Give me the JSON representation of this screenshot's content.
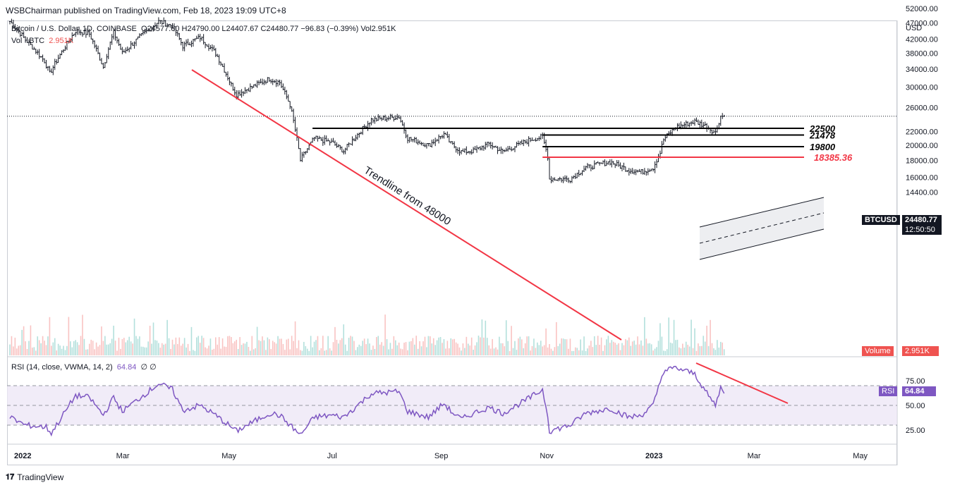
{
  "publisher": "WSBChairman published on TradingView.com, Feb 18, 2023 19:09 UTC+8",
  "legend": {
    "symbol": "Bitcoin / U.S. Dollar, 1D, COINBASE",
    "ohlc": "O24577.60  H24790.00  L24407.67  C24480.77  −96.83 (−0.39%)  Vol2.951K",
    "vol_label": "Vol · BTC",
    "vol_value": "2.951K"
  },
  "rsi_legend": {
    "label": "RSI (14, close, VWMA, 14, 2)",
    "value": "64.84",
    "extra": "∅  ∅"
  },
  "axis": {
    "currency": "USD",
    "price_ticks": [
      "52000.00",
      "47000.00",
      "42000.00",
      "38000.00",
      "34000.00",
      "30000.00",
      "26000.00",
      "22000.00",
      "20000.00",
      "18000.00",
      "16000.00",
      "14400.00"
    ],
    "rsi_ticks": [
      "75.00",
      "50.00",
      "25.00"
    ],
    "time_ticks": [
      "2022",
      "Mar",
      "May",
      "Jul",
      "Sep",
      "Nov",
      "2023",
      "Mar",
      "May"
    ]
  },
  "tags": {
    "symbol": "BTCUSD",
    "price": "24480.77",
    "countdown": "12:50:50",
    "volume_label": "Volume",
    "volume_value": "2.951K",
    "rsi_label": "RSI",
    "rsi_value": "64.84"
  },
  "annotations": {
    "trendline_text": "Trendline from 48000",
    "levels": [
      {
        "value": "22500",
        "color": "#000000"
      },
      {
        "value": "21478",
        "color": "#000000"
      },
      {
        "value": "19800",
        "color": "#000000"
      },
      {
        "value": "18385.36",
        "color": "#f23645"
      }
    ]
  },
  "footer": {
    "brand": "TradingView"
  },
  "colors": {
    "up": "#26a69a",
    "down": "#ef5350",
    "bar": "#131722",
    "rsi": "#7e57c2",
    "trend": "#f23645",
    "rsi_band": "#ede7f6"
  },
  "chart_data": {
    "type": "ohlc",
    "title": "Bitcoin / U.S. Dollar, 1D, COINBASE",
    "x_range": [
      "2022-01-01",
      "2023-05-10"
    ],
    "y_range": [
      14400,
      52000
    ],
    "y_scale": "log",
    "close_path": [
      [
        "2022-01-01",
        47500
      ],
      [
        "2022-01-10",
        41800
      ],
      [
        "2022-01-21",
        36000
      ],
      [
        "2022-01-24",
        33000
      ],
      [
        "2022-02-08",
        44500
      ],
      [
        "2022-02-16",
        43500
      ],
      [
        "2022-02-24",
        34500
      ],
      [
        "2022-03-02",
        44000
      ],
      [
        "2022-03-07",
        38000
      ],
      [
        "2022-03-28",
        47500
      ],
      [
        "2022-04-05",
        46000
      ],
      [
        "2022-04-11",
        40000
      ],
      [
        "2022-04-21",
        42500
      ],
      [
        "2022-04-30",
        38000
      ],
      [
        "2022-05-09",
        30500
      ],
      [
        "2022-05-12",
        28500
      ],
      [
        "2022-05-31",
        31800
      ],
      [
        "2022-06-06",
        31000
      ],
      [
        "2022-06-12",
        26500
      ],
      [
        "2022-06-18",
        18000
      ],
      [
        "2022-06-26",
        21000
      ],
      [
        "2022-07-06",
        20400
      ],
      [
        "2022-07-13",
        19200
      ],
      [
        "2022-07-29",
        23900
      ],
      [
        "2022-08-14",
        24400
      ],
      [
        "2022-08-19",
        21000
      ],
      [
        "2022-08-31",
        20000
      ],
      [
        "2022-09-09",
        21600
      ],
      [
        "2022-09-13",
        20200
      ],
      [
        "2022-09-19",
        19100
      ],
      [
        "2022-09-26",
        19200
      ],
      [
        "2022-10-05",
        20200
      ],
      [
        "2022-10-13",
        19100
      ],
      [
        "2022-10-29",
        20800
      ],
      [
        "2022-11-05",
        21200
      ],
      [
        "2022-11-08",
        18500
      ],
      [
        "2022-11-09",
        15800
      ],
      [
        "2022-11-21",
        15800
      ],
      [
        "2022-11-30",
        17100
      ],
      [
        "2022-12-14",
        17800
      ],
      [
        "2022-12-25",
        16800
      ],
      [
        "2023-01-01",
        16600
      ],
      [
        "2023-01-08",
        17100
      ],
      [
        "2023-01-12",
        19000
      ],
      [
        "2023-01-14",
        20800
      ],
      [
        "2023-01-21",
        22700
      ],
      [
        "2023-02-01",
        23600
      ],
      [
        "2023-02-08",
        22800
      ],
      [
        "2023-02-13",
        21800
      ],
      [
        "2023-02-16",
        24500
      ],
      [
        "2023-02-18",
        24480
      ]
    ],
    "levels": [
      22500,
      21478,
      19800,
      18385.36
    ],
    "rsi": {
      "name": "RSI (14, close, VWMA, 14, 2)",
      "last": 64.84,
      "bands": [
        70,
        50,
        30
      ],
      "ylim": [
        20,
        85
      ],
      "path": [
        [
          "2022-01-01",
          38
        ],
        [
          "2022-01-10",
          30
        ],
        [
          "2022-01-22",
          28
        ],
        [
          "2022-01-25",
          22
        ],
        [
          "2022-02-08",
          60
        ],
        [
          "2022-02-16",
          58
        ],
        [
          "2022-02-24",
          40
        ],
        [
          "2022-03-02",
          58
        ],
        [
          "2022-03-07",
          44
        ],
        [
          "2022-03-28",
          72
        ],
        [
          "2022-04-05",
          66
        ],
        [
          "2022-04-11",
          45
        ],
        [
          "2022-04-21",
          50
        ],
        [
          "2022-04-30",
          40
        ],
        [
          "2022-05-09",
          28
        ],
        [
          "2022-05-12",
          24
        ],
        [
          "2022-05-31",
          42
        ],
        [
          "2022-06-06",
          40
        ],
        [
          "2022-06-12",
          30
        ],
        [
          "2022-06-18",
          20
        ],
        [
          "2022-06-26",
          38
        ],
        [
          "2022-07-06",
          40
        ],
        [
          "2022-07-13",
          38
        ],
        [
          "2022-07-29",
          62
        ],
        [
          "2022-08-14",
          64
        ],
        [
          "2022-08-19",
          44
        ],
        [
          "2022-08-31",
          38
        ],
        [
          "2022-09-09",
          52
        ],
        [
          "2022-09-13",
          44
        ],
        [
          "2022-09-19",
          36
        ],
        [
          "2022-09-26",
          42
        ],
        [
          "2022-10-05",
          48
        ],
        [
          "2022-10-13",
          42
        ],
        [
          "2022-10-29",
          58
        ],
        [
          "2022-11-05",
          66
        ],
        [
          "2022-11-08",
          40
        ],
        [
          "2022-11-09",
          24
        ],
        [
          "2022-11-21",
          30
        ],
        [
          "2022-11-30",
          42
        ],
        [
          "2022-12-14",
          47
        ],
        [
          "2022-12-25",
          38
        ],
        [
          "2023-01-01",
          40
        ],
        [
          "2023-01-08",
          50
        ],
        [
          "2023-01-12",
          74
        ],
        [
          "2023-01-14",
          85
        ],
        [
          "2023-01-21",
          88
        ],
        [
          "2023-02-01",
          82
        ],
        [
          "2023-02-08",
          62
        ],
        [
          "2023-02-13",
          50
        ],
        [
          "2023-02-16",
          68
        ],
        [
          "2023-02-18",
          64.84
        ]
      ]
    },
    "volume": {
      "last": "2.951K"
    }
  }
}
